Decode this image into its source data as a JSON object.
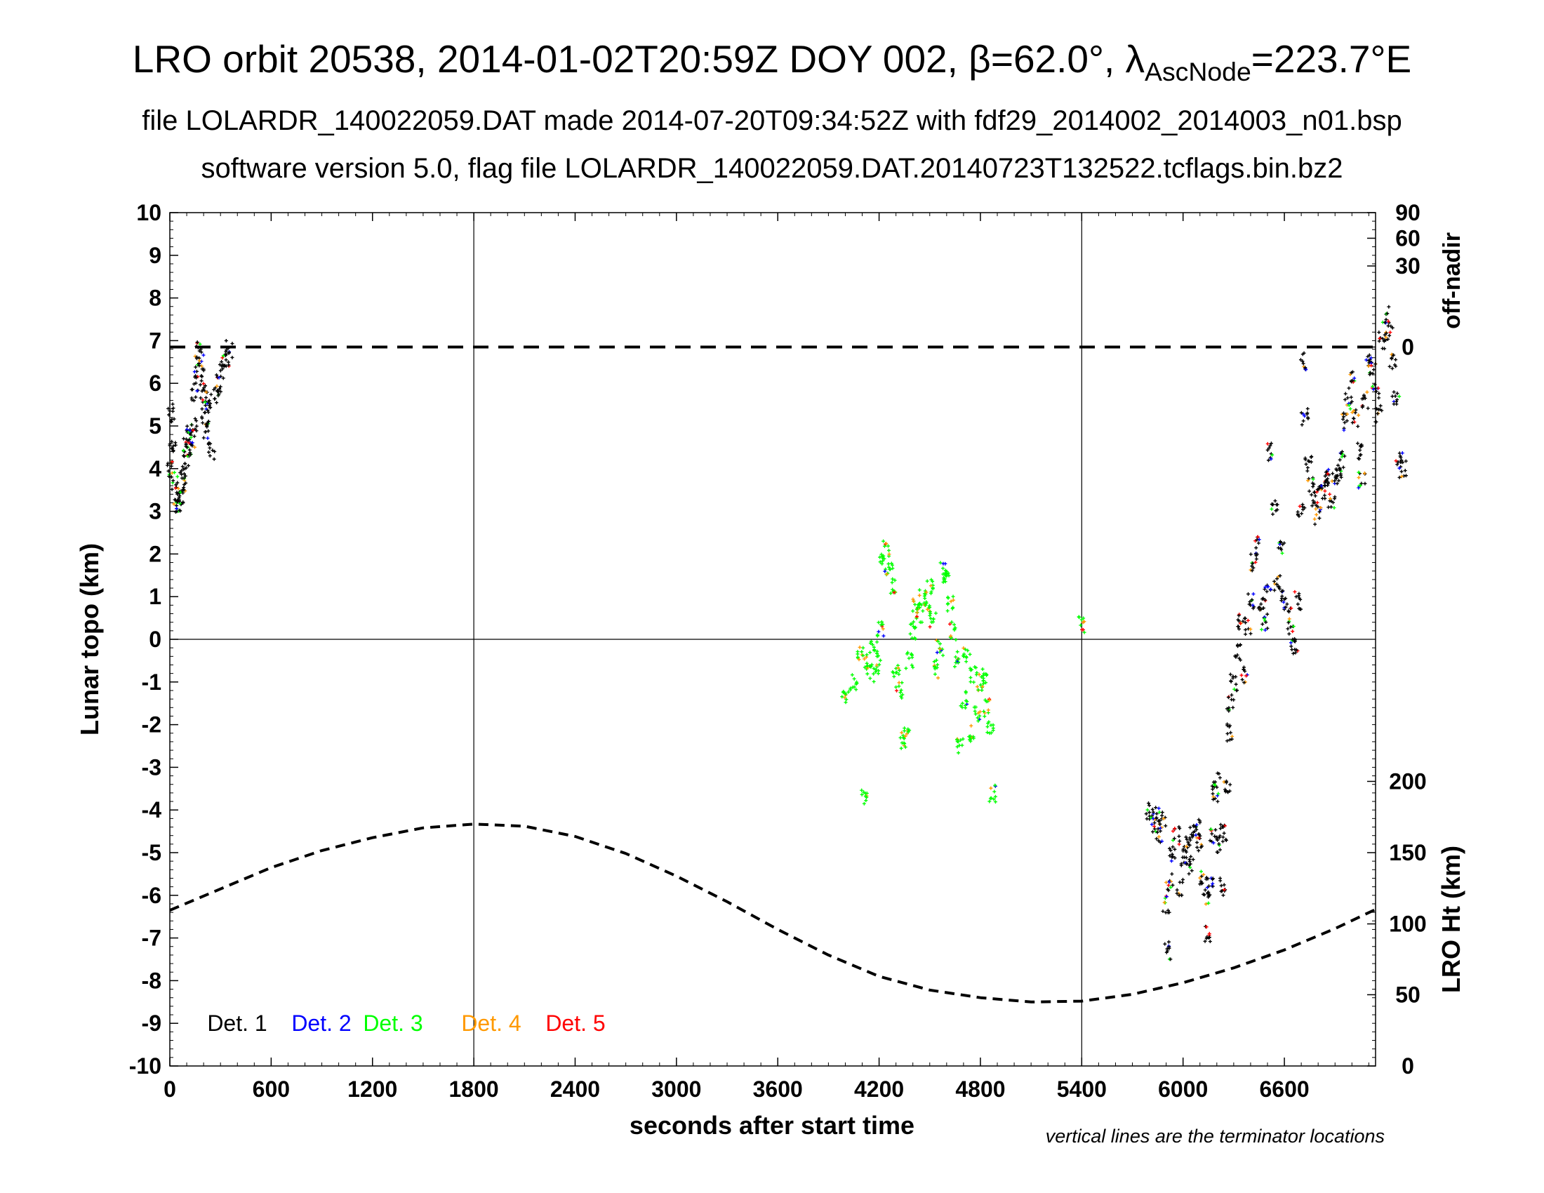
{
  "header": {
    "title_prefix": "LRO orbit 20538, 2014-01-02T20:59Z DOY 002, β=62.0°, λ",
    "title_subscript": "AscNode",
    "title_suffix": "=223.7°E",
    "line2": "file LOLARDR_140022059.DAT made 2014-07-20T09:34:52Z with fdf29_2014002_2014003_n01.bsp",
    "line3": "software version 5.0, flag file LOLARDR_140022059.DAT.20140723T132522.tcflags.bin.bz2"
  },
  "chart_data": {
    "type": "scatter",
    "xlabel": "seconds after start time",
    "ylabel": "Lunar topo (km)",
    "right_upper_label": "off-nadir",
    "right_lower_label": "LRO Ht (km)",
    "note": "vertical lines are the terminator locations",
    "xlim": [
      0,
      7140
    ],
    "ylim": [
      -10,
      10
    ],
    "x_ticks": [
      "0",
      "600",
      "1200",
      "1800",
      "2400",
      "3000",
      "3600",
      "4200",
      "4800",
      "5400",
      "6000",
      "6600"
    ],
    "y_ticks": [
      "-10",
      "-9",
      "-8",
      "-7",
      "-6",
      "-5",
      "-4",
      "-3",
      "-2",
      "-1",
      "0",
      "1",
      "2",
      "3",
      "4",
      "5",
      "6",
      "7",
      "8",
      "9",
      "10"
    ],
    "off_nadir_ticks": [
      {
        "label": "0",
        "topo": 6.85
      },
      {
        "label": "30",
        "topo": 8.75
      },
      {
        "label": "60",
        "topo": 9.4
      },
      {
        "label": "90",
        "topo": 10.0
      }
    ],
    "height_ticks": [
      {
        "label": "0",
        "topo": -10.0
      },
      {
        "label": "50",
        "topo": -8.33
      },
      {
        "label": "100",
        "topo": -6.67
      },
      {
        "label": "150",
        "topo": -5.0
      },
      {
        "label": "200",
        "topo": -3.33
      }
    ],
    "terminators": [
      1800,
      5400
    ],
    "zero_offnadir_topo": 6.85,
    "altitude_curve": {
      "unit_note": "LRO height expressed on the topo axis",
      "points": [
        [
          0,
          -6.35
        ],
        [
          300,
          -5.85
        ],
        [
          600,
          -5.35
        ],
        [
          900,
          -4.95
        ],
        [
          1200,
          -4.65
        ],
        [
          1500,
          -4.42
        ],
        [
          1800,
          -4.33
        ],
        [
          2100,
          -4.38
        ],
        [
          2400,
          -4.62
        ],
        [
          2700,
          -5.02
        ],
        [
          3000,
          -5.55
        ],
        [
          3300,
          -6.15
        ],
        [
          3600,
          -6.8
        ],
        [
          3900,
          -7.4
        ],
        [
          4200,
          -7.9
        ],
        [
          4500,
          -8.22
        ],
        [
          4800,
          -8.4
        ],
        [
          5100,
          -8.5
        ],
        [
          5400,
          -8.48
        ],
        [
          5700,
          -8.32
        ],
        [
          6000,
          -8.05
        ],
        [
          6300,
          -7.7
        ],
        [
          6600,
          -7.28
        ],
        [
          6900,
          -6.78
        ],
        [
          7140,
          -6.33
        ]
      ]
    },
    "legend": [
      {
        "name": "Det. 1",
        "color": "#000000"
      },
      {
        "name": "Det. 2",
        "color": "#0000ff"
      },
      {
        "name": "Det. 3",
        "color": "#00ff00"
      },
      {
        "name": "Det. 4",
        "color": "#ff9900"
      },
      {
        "name": "Det. 5",
        "color": "#ff0000"
      }
    ],
    "tracks": [
      {
        "dominant": "Det. 1",
        "points": [
          [
            0,
            4.0
          ],
          [
            10,
            5.3
          ],
          [
            20,
            4.6
          ],
          [
            30,
            3.7
          ],
          [
            40,
            3.2
          ],
          [
            50,
            3.1
          ],
          [
            60,
            3.4
          ],
          [
            70,
            3.6
          ],
          [
            80,
            3.8
          ],
          [
            90,
            4.2
          ],
          [
            100,
            4.5
          ],
          [
            110,
            4.4
          ],
          [
            120,
            4.8
          ],
          [
            130,
            4.7
          ],
          [
            140,
            5.0
          ],
          [
            150,
            5.8
          ],
          [
            160,
            6.3
          ],
          [
            170,
            6.8
          ],
          [
            180,
            6.5
          ],
          [
            190,
            6.0
          ],
          [
            200,
            5.5
          ],
          [
            210,
            5.2
          ],
          [
            220,
            4.9
          ],
          [
            230,
            5.6
          ],
          [
            250,
            4.4
          ],
          [
            270,
            5.7
          ],
          [
            290,
            6.0
          ],
          [
            310,
            6.3
          ],
          [
            330,
            6.6
          ],
          [
            350,
            6.8
          ]
        ]
      },
      {
        "dominant": "Det. 3",
        "points": [
          [
            4000,
            -1.3
          ],
          [
            4050,
            -1.0
          ],
          [
            4090,
            -0.4
          ],
          [
            4110,
            -3.7
          ],
          [
            4130,
            -0.5
          ],
          [
            4150,
            -0.8
          ],
          [
            4170,
            -0.2
          ],
          [
            4190,
            -0.6
          ],
          [
            4210,
            0.2
          ],
          [
            4220,
            1.8
          ],
          [
            4240,
            2.1
          ],
          [
            4260,
            1.6
          ],
          [
            4280,
            1.2
          ],
          [
            4300,
            -0.7
          ],
          [
            4320,
            -1.2
          ],
          [
            4340,
            -2.4
          ],
          [
            4360,
            -2.2
          ],
          [
            4380,
            -0.5
          ],
          [
            4400,
            0.2
          ],
          [
            4420,
            0.8
          ],
          [
            4440,
            0.6
          ],
          [
            4460,
            1.0
          ],
          [
            4480,
            0.8
          ],
          [
            4500,
            1.2
          ],
          [
            4520,
            0.5
          ],
          [
            4540,
            -0.7
          ],
          [
            4560,
            -0.2
          ],
          [
            4580,
            1.7
          ],
          [
            4600,
            1.5
          ],
          [
            4620,
            0.8
          ],
          [
            4640,
            0.2
          ],
          [
            4660,
            -0.5
          ],
          [
            4680,
            -2.5
          ],
          [
            4700,
            -1.4
          ],
          [
            4720,
            -0.4
          ],
          [
            4740,
            -2.2
          ],
          [
            4760,
            -0.8
          ],
          [
            4780,
            -1.7
          ],
          [
            4800,
            -1.0
          ],
          [
            4820,
            -0.9
          ],
          [
            4840,
            -1.6
          ],
          [
            4860,
            -2.0
          ],
          [
            4870,
            -3.6
          ],
          [
            5400,
            0.35
          ]
        ]
      },
      {
        "dominant": "Det. 1",
        "points": [
          [
            5800,
            -4.0
          ],
          [
            5820,
            -4.3
          ],
          [
            5840,
            -4.1
          ],
          [
            5860,
            -4.6
          ],
          [
            5880,
            -4.2
          ],
          [
            5900,
            -6.2
          ],
          [
            5910,
            -7.3
          ],
          [
            5920,
            -5.7
          ],
          [
            5940,
            -5.0
          ],
          [
            5960,
            -4.6
          ],
          [
            5980,
            -5.8
          ],
          [
            6000,
            -5.1
          ],
          [
            6020,
            -4.8
          ],
          [
            6040,
            -5.3
          ],
          [
            6060,
            -4.6
          ],
          [
            6080,
            -4.4
          ],
          [
            6100,
            -4.8
          ],
          [
            6120,
            -5.6
          ],
          [
            6140,
            -6.0
          ],
          [
            6150,
            -6.9
          ],
          [
            6160,
            -5.8
          ],
          [
            6180,
            -4.6
          ],
          [
            6190,
            -3.6
          ],
          [
            6200,
            -3.3
          ],
          [
            6220,
            -4.8
          ],
          [
            6230,
            -5.8
          ],
          [
            6240,
            -4.5
          ],
          [
            6260,
            -3.4
          ],
          [
            6270,
            -2.2
          ],
          [
            6280,
            -1.5
          ],
          [
            6300,
            -1.0
          ],
          [
            6320,
            -0.3
          ],
          [
            6340,
            0.4
          ],
          [
            6360,
            -0.8
          ],
          [
            6380,
            0.3
          ],
          [
            6400,
            0.9
          ],
          [
            6420,
            1.8
          ],
          [
            6440,
            2.2
          ],
          [
            6460,
            0.8
          ],
          [
            6480,
            0.4
          ],
          [
            6500,
            1.1
          ],
          [
            6520,
            4.4
          ],
          [
            6540,
            3.1
          ],
          [
            6560,
            1.3
          ],
          [
            6580,
            2.1
          ],
          [
            6600,
            1.0
          ],
          [
            6620,
            0.6
          ],
          [
            6640,
            0.1
          ],
          [
            6660,
            -0.2
          ],
          [
            6680,
            0.9
          ],
          [
            6700,
            3.0
          ],
          [
            6710,
            6.5
          ],
          [
            6720,
            5.2
          ],
          [
            6740,
            4.1
          ],
          [
            6760,
            3.6
          ],
          [
            6780,
            3.3
          ],
          [
            6800,
            2.9
          ],
          [
            6820,
            3.4
          ],
          [
            6840,
            3.6
          ],
          [
            6860,
            3.8
          ],
          [
            6880,
            3.2
          ],
          [
            6900,
            3.7
          ],
          [
            6920,
            3.9
          ],
          [
            6940,
            4.2
          ],
          [
            6960,
            5.1
          ],
          [
            6980,
            5.6
          ],
          [
            7000,
            6.1
          ],
          [
            7020,
            5.2
          ],
          [
            7040,
            4.4
          ],
          [
            7060,
            3.7
          ],
          [
            7080,
            5.6
          ],
          [
            7100,
            6.6
          ],
          [
            7120,
            6.3
          ],
          [
            7140,
            5.8
          ],
          [
            7160,
            5.3
          ],
          [
            7180,
            7.0
          ],
          [
            7200,
            7.6
          ],
          [
            7220,
            7.2
          ],
          [
            7240,
            6.5
          ],
          [
            7260,
            5.6
          ],
          [
            7280,
            4.2
          ],
          [
            7300,
            4.0
          ]
        ]
      }
    ],
    "colors": {
      "axis": "#000000",
      "grid": "#000000"
    }
  }
}
